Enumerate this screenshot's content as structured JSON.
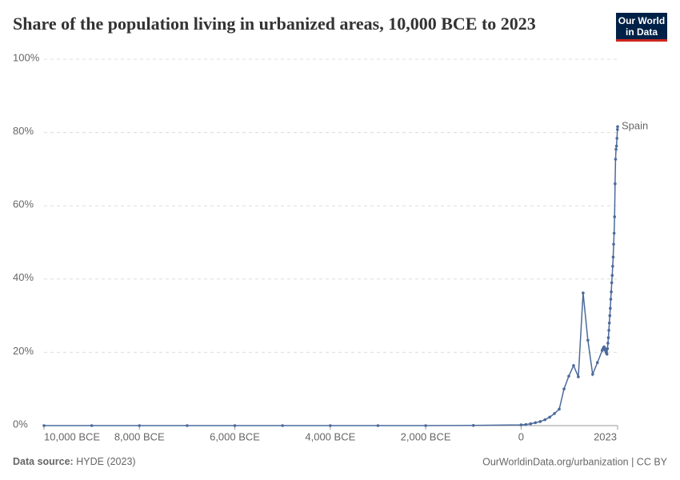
{
  "chart_data": {
    "type": "line",
    "title": "Share of the population living in urbanized areas, 10,000 BCE to 2023",
    "logo": [
      "Our World",
      "in Data"
    ],
    "source_label": "Data source:",
    "source": "HYDE (2023)",
    "credit": "OurWorldinData.org/urbanization | CC BY",
    "x": [
      -10000,
      -9000,
      -8000,
      -7000,
      -6000,
      -5000,
      -4000,
      -3000,
      -2000,
      -1000,
      0,
      100,
      200,
      300,
      400,
      500,
      600,
      700,
      800,
      900,
      1000,
      1100,
      1200,
      1300,
      1400,
      1500,
      1600,
      1700,
      1710,
      1720,
      1730,
      1740,
      1750,
      1760,
      1770,
      1780,
      1790,
      1800,
      1810,
      1820,
      1830,
      1840,
      1850,
      1860,
      1870,
      1880,
      1890,
      1900,
      1910,
      1920,
      1930,
      1940,
      1950,
      1960,
      1970,
      1980,
      1990,
      2000,
      2010,
      2020,
      2023
    ],
    "series": [
      {
        "name": "Spain",
        "color": "#4c6a9c",
        "values": [
          0,
          0,
          0,
          0,
          0,
          0,
          0,
          0,
          0,
          0.05,
          0.2,
          0.3,
          0.5,
          0.8,
          1.1,
          1.6,
          2.3,
          3.3,
          4.5,
          10,
          13.5,
          16.4,
          13.3,
          36.2,
          23.3,
          14,
          17.2,
          20.5,
          20.8,
          21,
          21.3,
          21.5,
          21.2,
          20.8,
          20.5,
          20.1,
          19.8,
          19.5,
          21,
          22.5,
          24,
          26,
          28,
          30,
          32,
          34.5,
          36.5,
          39,
          41,
          43.5,
          46,
          49.5,
          52.5,
          57,
          66,
          72.7,
          75.4,
          76.3,
          78.4,
          80.8,
          81.6
        ]
      }
    ],
    "xlim": [
      -10000,
      2023
    ],
    "xticks": [
      {
        "value": -10000,
        "label": "10,000 BCE"
      },
      {
        "value": -8000,
        "label": "8,000 BCE"
      },
      {
        "value": -6000,
        "label": "6,000 BCE"
      },
      {
        "value": -4000,
        "label": "4,000 BCE"
      },
      {
        "value": -2000,
        "label": "2,000 BCE"
      },
      0,
      2023
    ],
    "ylim": [
      0,
      100
    ],
    "yticks": [
      {
        "value": 0,
        "label": "0%"
      },
      {
        "value": 20,
        "label": "20%"
      },
      {
        "value": 40,
        "label": "40%"
      },
      {
        "value": 60,
        "label": "60%"
      },
      {
        "value": 80,
        "label": "80%"
      },
      {
        "value": 100,
        "label": "100%"
      }
    ],
    "grid": true
  }
}
